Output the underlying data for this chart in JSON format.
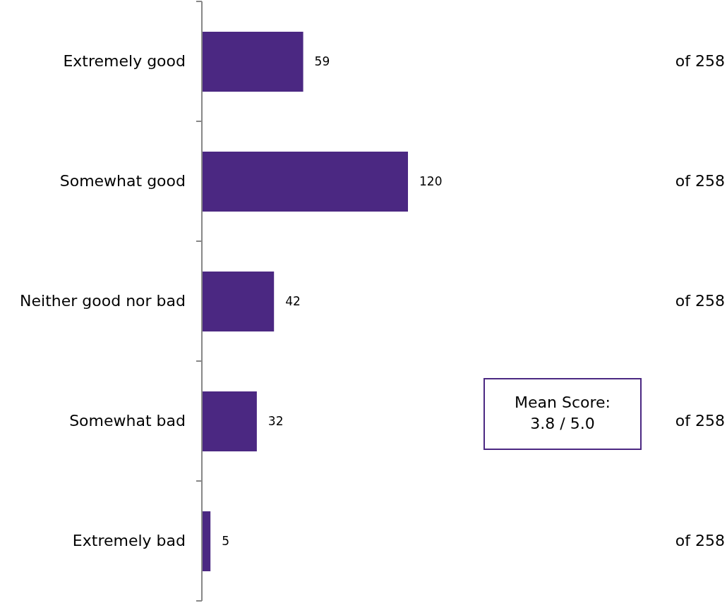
{
  "chart_data": {
    "type": "bar",
    "orientation": "horizontal",
    "categories": [
      "Extremely good",
      "Somewhat good",
      "Neither good nor bad",
      "Somewhat bad",
      "Extremely bad"
    ],
    "values": [
      59,
      120,
      42,
      32,
      5
    ],
    "color": "#4b2882",
    "data_labels": true,
    "annotations": [
      "of 258",
      "of 258",
      "of 258",
      "of 258",
      "of 258",
      "Mean Score:\n3.8 / 5.0"
    ]
  }
}
